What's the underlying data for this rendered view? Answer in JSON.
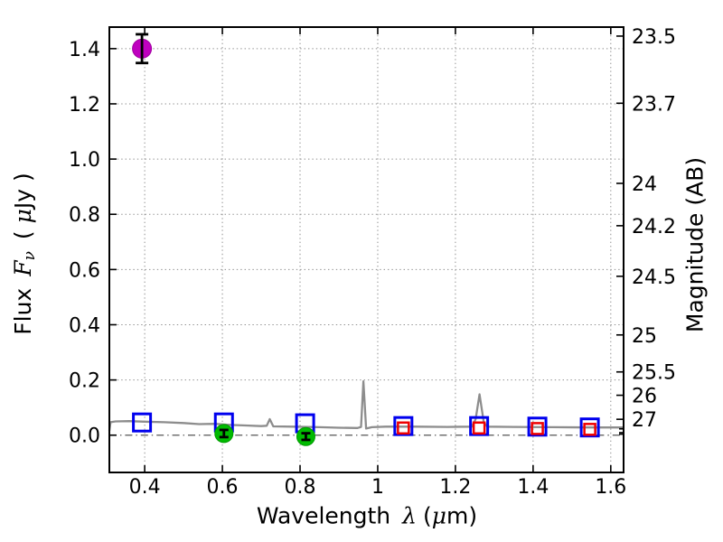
{
  "figure": {
    "background": "#ffffff",
    "text_color": "#000000"
  },
  "axes": {
    "xlabel": {
      "word": "Wavelength",
      "symbol": "λ",
      "unit_open": "(",
      "unit_mu": "μ",
      "unit_rest": "m)"
    },
    "ylabel_left": {
      "word": "Flux",
      "symbol": "F",
      "symbol_sub": "ν",
      "unit_open": "( ",
      "unit_mu": "μ",
      "unit_rest": "Jy )"
    },
    "ylabel_right": "Magnitude (AB)"
  },
  "chart_data": {
    "type": "line",
    "title": "",
    "xlabel": "Wavelength λ (μm)",
    "ylabel": "Flux Fν ( μJy )",
    "y2label": "Magnitude (AB)",
    "xlim": [
      0.309,
      1.633
    ],
    "ylim": [
      -0.135,
      1.478
    ],
    "grid": true,
    "grid_style": "dotted",
    "x_ticks": {
      "values": [
        0.4,
        0.6,
        0.8,
        1.0,
        1.2,
        1.4,
        1.6
      ],
      "labels": [
        "0.4",
        "0.6",
        "0.8",
        "1",
        "1.2",
        "1.4",
        "1.6"
      ]
    },
    "y_ticks": {
      "values": [
        0.0,
        0.2,
        0.4,
        0.6,
        0.8,
        1.0,
        1.2,
        1.4
      ],
      "labels": [
        "0.0",
        "0.2",
        "0.4",
        "0.6",
        "0.8",
        "1.0",
        "1.2",
        "1.4"
      ]
    },
    "y2_ticks": {
      "ab_zeropoint": 23.9,
      "values": [
        23.5,
        23.7,
        24,
        24.2,
        24.5,
        25,
        25.5,
        26,
        27
      ],
      "labels": [
        "23.5",
        "23.7",
        "24",
        "24.2",
        "24.5",
        "25",
        "25.5",
        "26",
        "27"
      ],
      "minor": [
        28,
        29,
        30
      ]
    },
    "zero_line": {
      "y": 0,
      "style": "dashdot",
      "color": "#555555"
    },
    "series": [
      {
        "name": "model-spectrum",
        "kind": "line",
        "color": "#8d8d8d",
        "line_width": 2.3,
        "points": [
          [
            0.309,
            0.016
          ],
          [
            0.312,
            0.047
          ],
          [
            0.325,
            0.05
          ],
          [
            0.36,
            0.051
          ],
          [
            0.4,
            0.049
          ],
          [
            0.45,
            0.047
          ],
          [
            0.5,
            0.044
          ],
          [
            0.54,
            0.04
          ],
          [
            0.58,
            0.041
          ],
          [
            0.62,
            0.037
          ],
          [
            0.66,
            0.035
          ],
          [
            0.7,
            0.033
          ],
          [
            0.714,
            0.034
          ],
          [
            0.722,
            0.058
          ],
          [
            0.731,
            0.032
          ],
          [
            0.78,
            0.031
          ],
          [
            0.85,
            0.029
          ],
          [
            0.9,
            0.027
          ],
          [
            0.948,
            0.026
          ],
          [
            0.957,
            0.03
          ],
          [
            0.963,
            0.195
          ],
          [
            0.97,
            0.024
          ],
          [
            0.985,
            0.029
          ],
          [
            1.02,
            0.031
          ],
          [
            1.1,
            0.031
          ],
          [
            1.18,
            0.03
          ],
          [
            1.242,
            0.031
          ],
          [
            1.252,
            0.058
          ],
          [
            1.262,
            0.148
          ],
          [
            1.273,
            0.047
          ],
          [
            1.282,
            0.031
          ],
          [
            1.35,
            0.03
          ],
          [
            1.45,
            0.029
          ],
          [
            1.55,
            0.028
          ],
          [
            1.633,
            0.028
          ]
        ]
      },
      {
        "name": "observed-photometry-squares",
        "kind": "scatter",
        "marker": "open-square",
        "color": "#0000ee",
        "marker_size": 19,
        "stroke_width": 3,
        "points": [
          [
            0.393,
            0.046
          ],
          [
            0.604,
            0.046
          ],
          [
            0.813,
            0.043
          ],
          [
            1.066,
            0.033
          ],
          [
            1.261,
            0.033
          ],
          [
            1.411,
            0.031
          ],
          [
            1.546,
            0.028
          ]
        ]
      },
      {
        "name": "model-photometry-squares",
        "kind": "scatter",
        "marker": "open-square",
        "color": "#ee0000",
        "marker_size": 12,
        "stroke_width": 2.5,
        "points": [
          [
            1.066,
            0.026
          ],
          [
            1.261,
            0.026
          ],
          [
            1.411,
            0.024
          ],
          [
            1.546,
            0.021
          ]
        ]
      },
      {
        "name": "detection-points",
        "kind": "scatter-error",
        "marker": "circle",
        "color": "#00bb00",
        "edge_color": "#009900",
        "marker_size": 20,
        "errorbar_color": "#000000",
        "cap_halfwidth": 5,
        "points": [
          [
            0.604,
            0.006,
            0.013
          ],
          [
            0.815,
            -0.005,
            0.012
          ]
        ]
      },
      {
        "name": "excess-flux-point",
        "kind": "scatter-error",
        "marker": "circle",
        "color": "#bf00bf",
        "edge_color": "#a000a0",
        "marker_size": 21,
        "errorbar_color": "#000000",
        "cap_halfwidth": 7,
        "points": [
          [
            0.393,
            1.4,
            0.052
          ]
        ]
      }
    ]
  }
}
